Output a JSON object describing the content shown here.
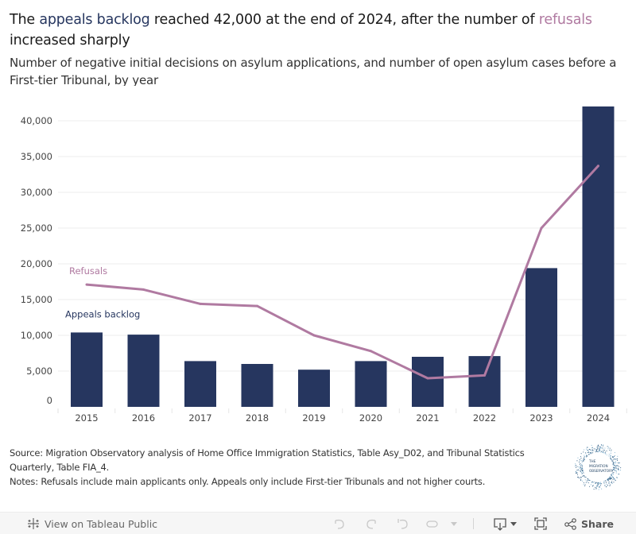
{
  "title": {
    "part1": "The ",
    "highlight_backlog": "appeals backlog",
    "part2": " reached 42,000 at the end of 2024, after the number of ",
    "highlight_refusals": "refusals",
    "part3": " increased sharply"
  },
  "subtitle": "Number of negative initial decisions on asylum applications, and number of open asylum cases before a First-tier Tribunal, by year",
  "colors": {
    "backlog": "#26365f",
    "refusals": "#b07aa1",
    "gridline": "#ececec"
  },
  "chart_data": {
    "type": "bar",
    "title": "The appeals backlog reached 42,000 at the end of 2024, after the number of refusals increased sharply",
    "subtitle": "Number of negative initial decisions on asylum applications, and number of open asylum cases before a First-tier Tribunal, by year",
    "xlabel": "",
    "ylabel": "",
    "categories": [
      "2015",
      "2016",
      "2017",
      "2018",
      "2019",
      "2020",
      "2021",
      "2022",
      "2023",
      "2024"
    ],
    "ylim": [
      0,
      42000
    ],
    "yticks": [
      0,
      5000,
      10000,
      15000,
      20000,
      25000,
      30000,
      35000,
      40000
    ],
    "ytick_labels": [
      "0",
      "5,000",
      "10,000",
      "15,000",
      "20,000",
      "25,000",
      "30,000",
      "35,000",
      "40,000"
    ],
    "grid": true,
    "series": [
      {
        "name": "Appeals backlog",
        "type": "bar",
        "color": "#26365f",
        "values": [
          10400,
          10100,
          6400,
          6000,
          5200,
          6400,
          7000,
          7100,
          19400,
          42000
        ]
      },
      {
        "name": "Refusals",
        "type": "line",
        "color": "#b07aa1",
        "values": [
          17100,
          16400,
          14400,
          14100,
          10000,
          7800,
          4000,
          4400,
          25000,
          33700
        ]
      }
    ],
    "annotations": [
      {
        "text": "Refusals",
        "series": "Refusals"
      },
      {
        "text": "Appeals backlog",
        "series": "Appeals backlog"
      }
    ]
  },
  "footer": {
    "source": "Source: Migration Observatory analysis of Home Office Immigration Statistics, Table Asy_D02, and Tribunal Statistics Quarterly, Table FIA_4.",
    "notes": "Notes: Refusals include main applicants only. Appeals only include First-tier Tribunals and not higher courts.",
    "logo_text": [
      "THE",
      "MIGRATION",
      "OBSERVATORY"
    ]
  },
  "toolbar": {
    "view_on_tableau": "View on Tableau Public",
    "tableau_icon": "tableau-logo-icon",
    "undo_icon": "undo-icon",
    "redo_icon": "redo-icon",
    "revert_icon": "revert-icon",
    "refresh_icon": "refresh-icon",
    "download_icon": "download-icon",
    "fullscreen_icon": "fullscreen-icon",
    "share_label": "Share",
    "share_icon": "share-icon"
  }
}
